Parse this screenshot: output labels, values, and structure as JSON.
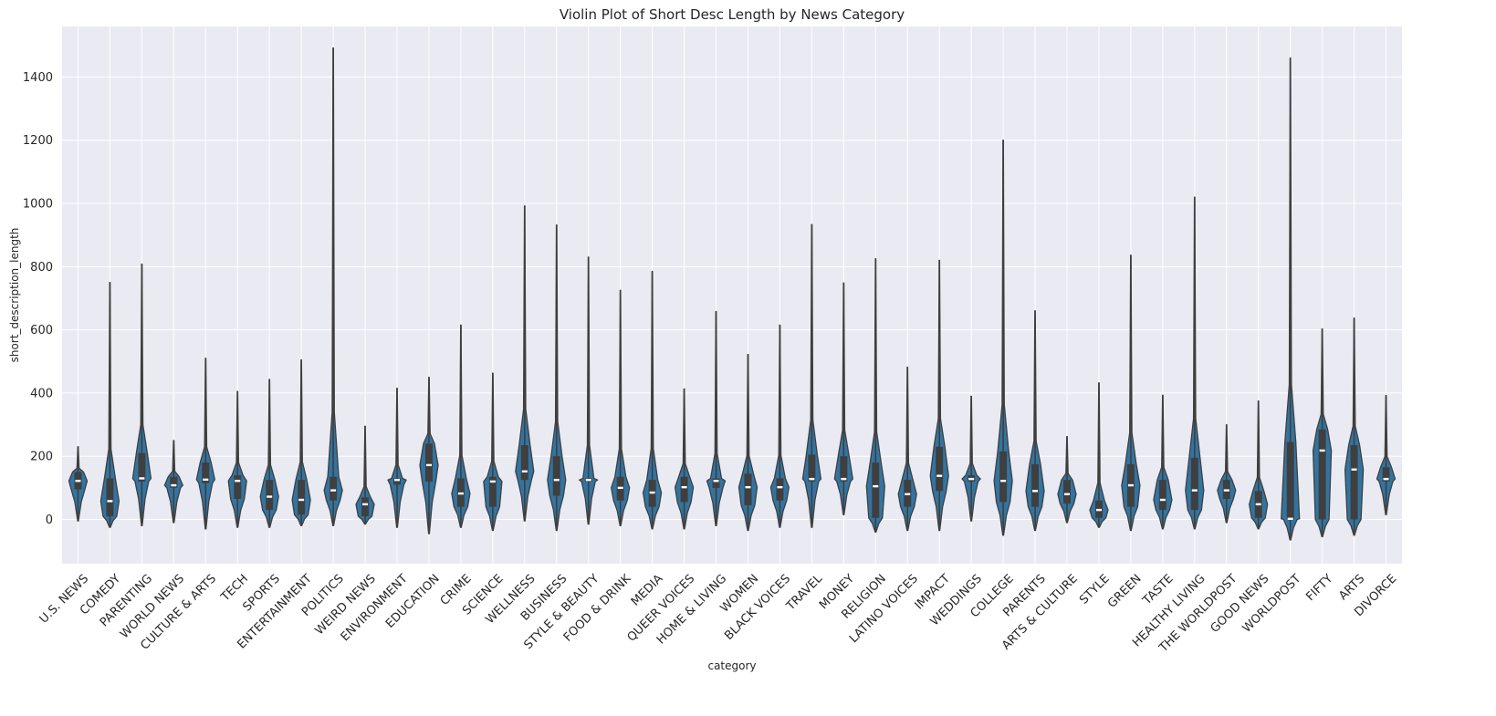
{
  "chart_data": {
    "type": "violin",
    "title": "Violin Plot of Short Desc Length by News Category",
    "xlabel": "category",
    "ylabel": "short_description_length",
    "ylim": [
      -140,
      1560
    ],
    "yticks": [
      0,
      200,
      400,
      600,
      800,
      1000,
      1200,
      1400
    ],
    "grid": true,
    "legend": "none",
    "colors": {
      "background": "#eaeaf2",
      "grid": "#ffffff",
      "violin_fill": "#3274a1",
      "box": "#3f3f3f",
      "median": "#ffffff"
    },
    "categories": [
      "U.S. NEWS",
      "COMEDY",
      "PARENTING",
      "WORLD NEWS",
      "CULTURE & ARTS",
      "TECH",
      "SPORTS",
      "ENTERTAINMENT",
      "POLITICS",
      "WEIRD NEWS",
      "ENVIRONMENT",
      "EDUCATION",
      "CRIME",
      "SCIENCE",
      "WELLNESS",
      "BUSINESS",
      "STYLE & BEAUTY",
      "FOOD & DRINK",
      "MEDIA",
      "QUEER VOICES",
      "HOME & LIVING",
      "WOMEN",
      "BLACK VOICES",
      "TRAVEL",
      "MONEY",
      "RELIGION",
      "LATINO VOICES",
      "IMPACT",
      "WEDDINGS",
      "COLLEGE",
      "PARENTS",
      "ARTS & CULTURE",
      "STYLE",
      "GREEN",
      "TASTE",
      "HEALTHY LIVING",
      "THE WORLDPOST",
      "GOOD NEWS",
      "WORLDPOST",
      "FIFTY",
      "ARTS",
      "DIVORCE"
    ],
    "series": [
      {
        "min": -5,
        "q1": 95,
        "median": 122,
        "q3": 150,
        "max": 230
      },
      {
        "min": -25,
        "q1": 10,
        "median": 58,
        "q3": 130,
        "max": 750
      },
      {
        "min": -20,
        "q1": 120,
        "median": 130,
        "q3": 210,
        "max": 808
      },
      {
        "min": -10,
        "q1": 100,
        "median": 108,
        "q3": 135,
        "max": 250
      },
      {
        "min": -30,
        "q1": 115,
        "median": 126,
        "q3": 180,
        "max": 510
      },
      {
        "min": -25,
        "q1": 65,
        "median": 122,
        "q3": 140,
        "max": 405
      },
      {
        "min": -25,
        "q1": 30,
        "median": 72,
        "q3": 125,
        "max": 443
      },
      {
        "min": -20,
        "q1": 15,
        "median": 62,
        "q3": 125,
        "max": 505
      },
      {
        "min": -20,
        "q1": 60,
        "median": 92,
        "q3": 135,
        "max": 1492
      },
      {
        "min": -15,
        "q1": 10,
        "median": 48,
        "q3": 70,
        "max": 295
      },
      {
        "min": -25,
        "q1": 110,
        "median": 125,
        "q3": 130,
        "max": 415
      },
      {
        "min": -45,
        "q1": 120,
        "median": 172,
        "q3": 240,
        "max": 450
      },
      {
        "min": -25,
        "q1": 40,
        "median": 82,
        "q3": 130,
        "max": 615
      },
      {
        "min": -35,
        "q1": 40,
        "median": 120,
        "q3": 135,
        "max": 463
      },
      {
        "min": -5,
        "q1": 125,
        "median": 152,
        "q3": 235,
        "max": 992
      },
      {
        "min": -35,
        "q1": 75,
        "median": 125,
        "q3": 200,
        "max": 932
      },
      {
        "min": -15,
        "q1": 120,
        "median": 125,
        "q3": 130,
        "max": 830
      },
      {
        "min": -20,
        "q1": 60,
        "median": 100,
        "q3": 135,
        "max": 725
      },
      {
        "min": -30,
        "q1": 40,
        "median": 85,
        "q3": 125,
        "max": 785
      },
      {
        "min": -30,
        "q1": 55,
        "median": 102,
        "q3": 135,
        "max": 413
      },
      {
        "min": -20,
        "q1": 100,
        "median": 122,
        "q3": 130,
        "max": 658
      },
      {
        "min": -35,
        "q1": 45,
        "median": 102,
        "q3": 145,
        "max": 522
      },
      {
        "min": -25,
        "q1": 60,
        "median": 102,
        "q3": 130,
        "max": 615
      },
      {
        "min": -25,
        "q1": 120,
        "median": 128,
        "q3": 205,
        "max": 933
      },
      {
        "min": 15,
        "q1": 120,
        "median": 128,
        "q3": 200,
        "max": 748
      },
      {
        "min": -40,
        "q1": 5,
        "median": 105,
        "q3": 180,
        "max": 825
      },
      {
        "min": -35,
        "q1": 40,
        "median": 80,
        "q3": 125,
        "max": 482
      },
      {
        "min": -35,
        "q1": 90,
        "median": 138,
        "q3": 230,
        "max": 820
      },
      {
        "min": -5,
        "q1": 120,
        "median": 128,
        "q3": 140,
        "max": 390
      },
      {
        "min": -50,
        "q1": 55,
        "median": 122,
        "q3": 215,
        "max": 1200
      },
      {
        "min": -35,
        "q1": 40,
        "median": 90,
        "q3": 175,
        "max": 660
      },
      {
        "min": -10,
        "q1": 50,
        "median": 80,
        "q3": 125,
        "max": 262
      },
      {
        "min": -25,
        "q1": 5,
        "median": 30,
        "q3": 60,
        "max": 432
      },
      {
        "min": -35,
        "q1": 40,
        "median": 108,
        "q3": 175,
        "max": 836
      },
      {
        "min": -30,
        "q1": 30,
        "median": 62,
        "q3": 125,
        "max": 393
      },
      {
        "min": -30,
        "q1": 30,
        "median": 92,
        "q3": 195,
        "max": 1020
      },
      {
        "min": -10,
        "q1": 65,
        "median": 92,
        "q3": 125,
        "max": 300
      },
      {
        "min": -30,
        "q1": 5,
        "median": 48,
        "q3": 90,
        "max": 375
      },
      {
        "min": -65,
        "q1": 0,
        "median": 2,
        "q3": 245,
        "max": 1460
      },
      {
        "min": -55,
        "q1": 0,
        "median": 218,
        "q3": 285,
        "max": 603
      },
      {
        "min": -50,
        "q1": 0,
        "median": 158,
        "q3": 235,
        "max": 637
      },
      {
        "min": 15,
        "q1": 120,
        "median": 128,
        "q3": 165,
        "max": 392
      }
    ]
  }
}
